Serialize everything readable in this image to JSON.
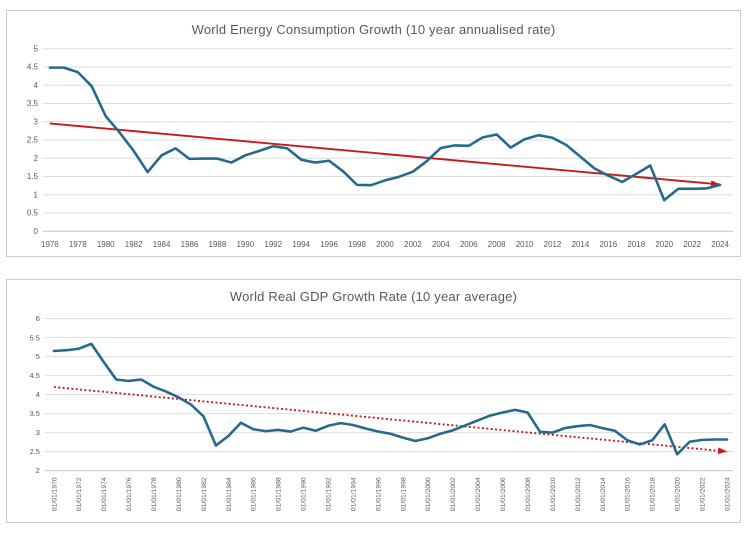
{
  "colors": {
    "line_blue": "#25698c",
    "trend_red": "#c31c1c",
    "gridline": "#dcdcdc",
    "axis_line": "#c6c6c6",
    "axis_text": "#595959",
    "title_text": "#595959",
    "panel_border": "#c9cccf",
    "background": "#ffffff"
  },
  "chart_data": [
    {
      "type": "line",
      "name": "energy",
      "title": "World Energy Consumption Growth (10 year annualised rate)",
      "xlabel": "",
      "ylabel": "",
      "grid": true,
      "legend": false,
      "x_range": [
        1976,
        2024
      ],
      "x_step": 1,
      "x_tick_step": 2,
      "x_tick_labels": [
        "1976",
        "1978",
        "1980",
        "1982",
        "1984",
        "1986",
        "1988",
        "1990",
        "1992",
        "1994",
        "1996",
        "1998",
        "2000",
        "2002",
        "2004",
        "2006",
        "2008",
        "2010",
        "2012",
        "2014",
        "2016",
        "2018",
        "2020",
        "2022",
        "2024"
      ],
      "ylim": [
        0,
        5
      ],
      "y_tick_step": 0.5,
      "y_tick_labels": [
        "5",
        "4.5",
        "4",
        "3.5",
        "3",
        "2.5",
        "2",
        "1.5",
        "1",
        "0.5",
        "0"
      ],
      "series": [
        {
          "name": "energy-consumption-growth",
          "values": [
            4.48,
            4.48,
            4.36,
            3.97,
            3.15,
            2.7,
            2.2,
            1.62,
            2.08,
            2.27,
            1.98,
            1.99,
            1.99,
            1.88,
            2.08,
            2.2,
            2.33,
            2.27,
            1.96,
            1.88,
            1.93,
            1.64,
            1.27,
            1.26,
            1.39,
            1.49,
            1.63,
            1.92,
            2.28,
            2.35,
            2.34,
            2.57,
            2.65,
            2.29,
            2.52,
            2.63,
            2.56,
            2.36,
            2.04,
            1.72,
            1.52,
            1.35,
            1.57,
            1.8,
            0.85,
            1.16,
            1.16,
            1.17,
            1.27
          ]
        }
      ],
      "trend": {
        "x1": 1976,
        "y1": 2.95,
        "x2": 2024,
        "y2": 1.28,
        "style": "solid",
        "arrow": true
      }
    },
    {
      "type": "line",
      "name": "gdp",
      "title": "World Real GDP Growth Rate (10 year average)",
      "xlabel": "",
      "ylabel": "",
      "grid": true,
      "legend": false,
      "x_range": [
        1970,
        2024
      ],
      "x_step": 1,
      "x_tick_step": 2,
      "x_tick_labels": [
        "01/01/1970",
        "01/01/1972",
        "01/01/1974",
        "01/01/1976",
        "01/01/1978",
        "01/01/1980",
        "01/01/1982",
        "01/01/1984",
        "01/01/1986",
        "01/01/1988",
        "01/01/1990",
        "01/01/1992",
        "01/01/1994",
        "01/01/1996",
        "01/01/1998",
        "01/01/2000",
        "01/01/2002",
        "01/01/2004",
        "01/01/2006",
        "01/01/2008",
        "01/01/2010",
        "01/01/2012",
        "01/01/2014",
        "01/01/2016",
        "01/01/2018",
        "01/01/2020",
        "01/01/2022",
        "01/01/2024"
      ],
      "ylim": [
        2,
        6
      ],
      "y_tick_step": 0.5,
      "y_tick_labels": [
        "6",
        "5.5",
        "5",
        "4.5",
        "4",
        "3.5",
        "3",
        "2.5",
        "2"
      ],
      "series": [
        {
          "name": "real-gdp-growth-rate",
          "values": [
            5.15,
            5.17,
            5.21,
            5.34,
            4.86,
            4.4,
            4.36,
            4.4,
            4.21,
            4.08,
            3.93,
            3.74,
            3.43,
            2.66,
            2.91,
            3.26,
            3.09,
            3.04,
            3.07,
            3.03,
            3.13,
            3.05,
            3.18,
            3.25,
            3.2,
            3.11,
            3.03,
            2.97,
            2.87,
            2.78,
            2.85,
            2.97,
            3.06,
            3.19,
            3.32,
            3.45,
            3.53,
            3.6,
            3.53,
            3.02,
            3.0,
            3.12,
            3.17,
            3.2,
            3.12,
            3.05,
            2.8,
            2.69,
            2.8,
            3.22,
            2.43,
            2.76,
            2.81,
            2.82,
            2.82
          ]
        }
      ],
      "trend": {
        "x1": 1970,
        "y1": 4.2,
        "x2": 2024,
        "y2": 2.5,
        "style": "dotted",
        "arrow": true
      }
    }
  ]
}
